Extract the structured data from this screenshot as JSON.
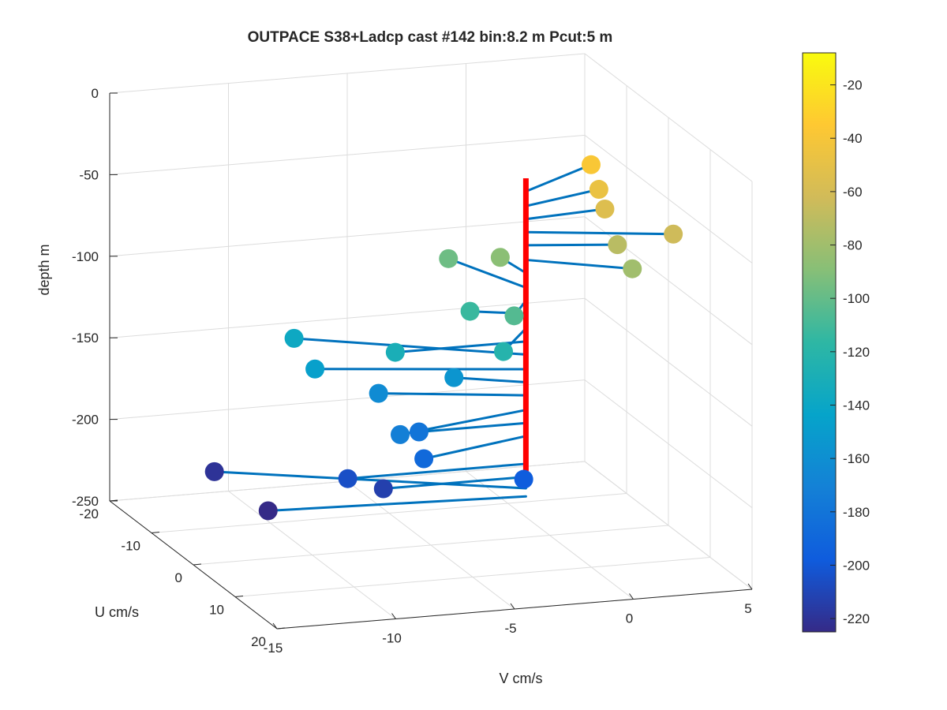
{
  "figure": {
    "title": "OUTPACE S38+Ladcp cast #142 bin:8.2 m  Pcut:5 m"
  },
  "chart_data": {
    "type": "scatter3d",
    "title": "OUTPACE S38+Ladcp cast #142 bin:8.2 m  Pcut:5 m",
    "xlabel": "V cm/s",
    "ylabel": "U cm/s",
    "zlabel": "depth m",
    "xlim": [
      -15,
      5
    ],
    "ylim": [
      -20,
      20
    ],
    "zlim": [
      -250,
      0
    ],
    "x_ticks": [
      "-15",
      "-10",
      "-5",
      "0",
      "5"
    ],
    "y_ticks": [
      "-20",
      "-10",
      "0",
      "10",
      "20"
    ],
    "z_ticks": [
      "0",
      "-50",
      "-100",
      "-150",
      "-200",
      "-250"
    ],
    "grid": true,
    "colormap": "parula",
    "color_variable": "depth m",
    "colorbar": {
      "range": [
        -225,
        -8
      ],
      "ticks": [
        "-20",
        "-40",
        "-60",
        "-80",
        "-100",
        "-120",
        "-140",
        "-160",
        "-180",
        "-200",
        "-220"
      ]
    },
    "profile_line": {
      "v": -1,
      "u": 0,
      "depth_range": [
        -218,
        -30
      ],
      "color": "#ff0000"
    },
    "stick_color": "#0072bd",
    "series": [
      {
        "points": [
          {
            "v": 2.8,
            "u": -6,
            "depth": -38
          },
          {
            "v": 2.6,
            "u": -3,
            "depth": -47
          },
          {
            "v": 2.5,
            "u": -1,
            "depth": -55
          },
          {
            "v": 4.5,
            "u": 4,
            "depth": -63
          },
          {
            "v": 2.5,
            "u": 2,
            "depth": -71
          },
          {
            "v": 2.6,
            "u": 5,
            "depth": -80
          },
          {
            "v": -1.2,
            "u": -5,
            "depth": -88
          },
          {
            "v": -2.5,
            "u": -10,
            "depth": -97
          },
          {
            "v": -2.2,
            "u": 4,
            "depth": -105
          },
          {
            "v": -3.0,
            "u": -2,
            "depth": -113
          },
          {
            "v": -3.0,
            "u": 6,
            "depth": -122
          },
          {
            "v": -6.5,
            "u": 0,
            "depth": -130
          },
          {
            "v": -9.0,
            "u": -10,
            "depth": -138
          },
          {
            "v": -9.0,
            "u": -5,
            "depth": -147
          },
          {
            "v": -3.5,
            "u": -3,
            "depth": -155
          },
          {
            "v": -6.5,
            "u": -4,
            "depth": -163
          },
          {
            "v": -7.0,
            "u": 4,
            "depth": -172
          },
          {
            "v": -5.5,
            "u": 0,
            "depth": -180
          },
          {
            "v": -6.0,
            "u": 4,
            "depth": -188
          },
          {
            "v": -2.5,
            "u": 8,
            "depth": -197
          },
          {
            "v": -8.5,
            "u": 0,
            "depth": -205
          },
          {
            "v": -7.0,
            "u": 0,
            "depth": -213
          },
          {
            "v": -12.0,
            "u": -12,
            "depth": -220
          },
          {
            "v": -11.5,
            "u": -2,
            "depth": -225
          }
        ]
      }
    ]
  }
}
